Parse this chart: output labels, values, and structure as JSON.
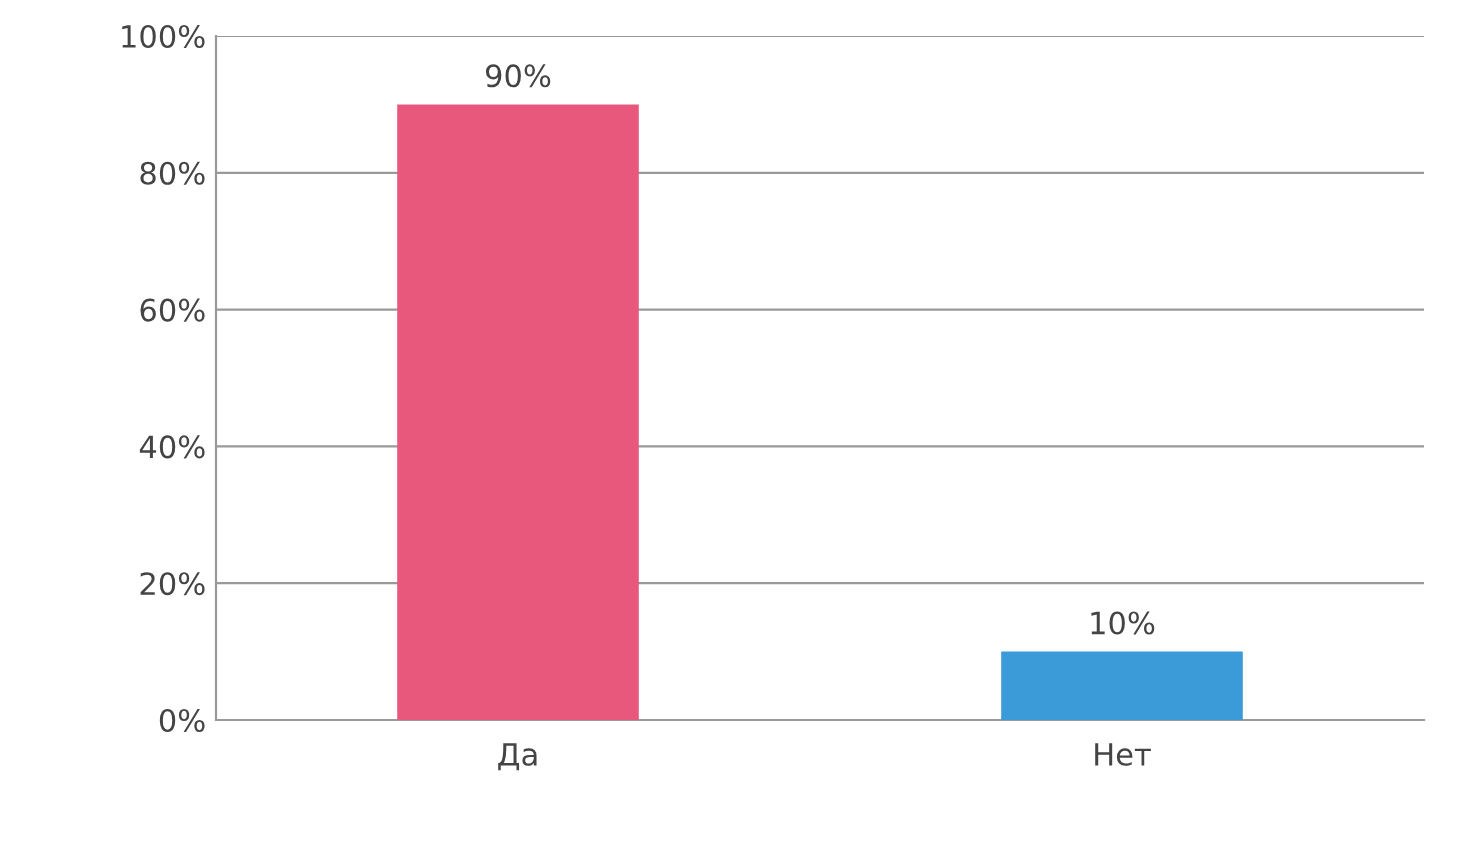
{
  "chart_data": {
    "type": "bar",
    "categories": [
      "Да",
      "Нет"
    ],
    "values": [
      90,
      10
    ],
    "colors": [
      "#e8587c",
      "#3b9bd8"
    ],
    "value_labels": [
      "90%",
      "10%"
    ],
    "ylim": [
      0,
      100
    ],
    "yticks": [
      {
        "value": 0,
        "label": "0%"
      },
      {
        "value": 20,
        "label": "20%"
      },
      {
        "value": 40,
        "label": "40%"
      },
      {
        "value": 60,
        "label": "60%"
      },
      {
        "value": 80,
        "label": "80%"
      },
      {
        "value": 100,
        "label": "100%"
      }
    ],
    "grid": "y"
  }
}
